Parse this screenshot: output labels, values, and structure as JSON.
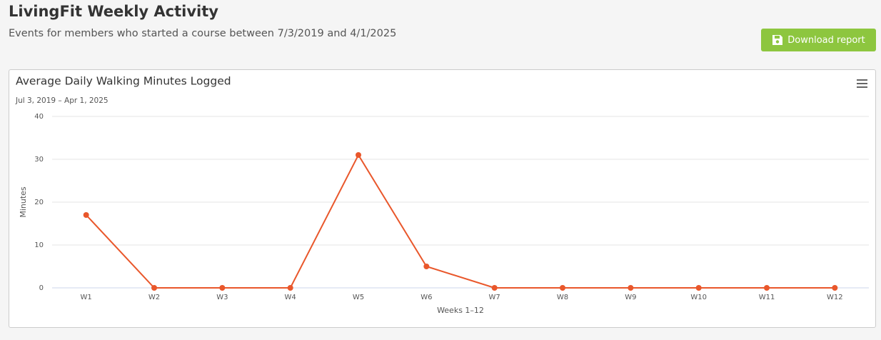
{
  "header": {
    "title": "LivingFit Weekly Activity",
    "subtitle": "Events for members who started a course between 7/3/2019 and 4/1/2025"
  },
  "button": {
    "label": "Download report"
  },
  "chart_data": {
    "type": "line",
    "title": "Average Daily Walking Minutes Logged",
    "subtitle": "Jul 3, 2019 – Apr 1, 2025",
    "x_label": "Weeks 1–12",
    "y_label": "Minutes",
    "categories": [
      "W1",
      "W2",
      "W3",
      "W4",
      "W5",
      "W6",
      "W7",
      "W8",
      "W9",
      "W10",
      "W11",
      "W12"
    ],
    "series": [
      {
        "name": "Minutes",
        "color": "#e9572b",
        "values": [
          17,
          0,
          0,
          0,
          31,
          5,
          0,
          0,
          0,
          0,
          0,
          0
        ]
      }
    ],
    "ylim": [
      0,
      40
    ],
    "yticks": [
      0,
      10,
      20,
      30,
      40
    ],
    "grid": true
  }
}
